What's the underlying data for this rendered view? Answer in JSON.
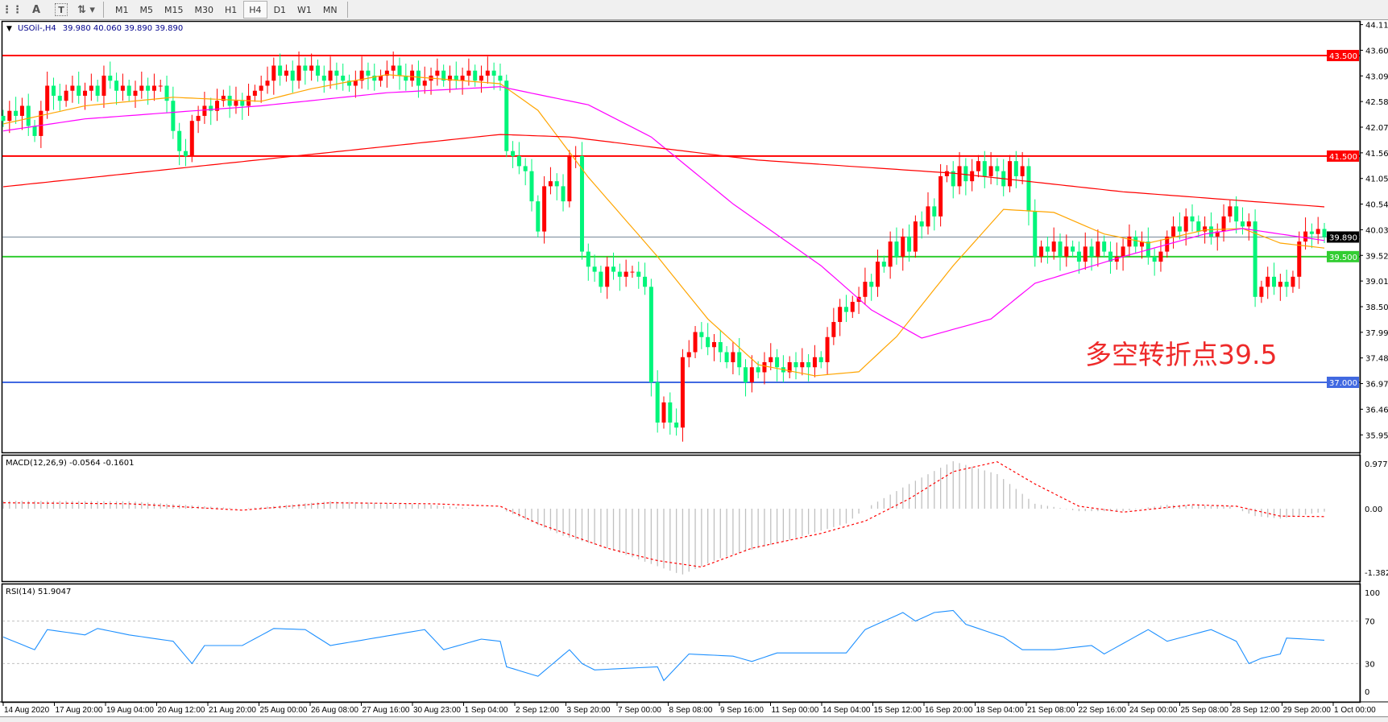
{
  "toolbar": {
    "icons": [
      "grid-icon",
      "text-a-icon",
      "text-label-icon",
      "arrows-icon"
    ],
    "timeframes": [
      "M1",
      "M5",
      "M15",
      "M30",
      "H1",
      "H4",
      "D1",
      "W1",
      "MN"
    ],
    "selected_timeframe": "H4"
  },
  "chart_header": {
    "symbol": "USOil-,H4",
    "ohlc": "39.980 40.060 39.890 39.890"
  },
  "annotation": "多空转折点39.5",
  "chart_data": [
    {
      "type": "candlestick",
      "title": "USOil-,H4",
      "ylim": [
        35.955,
        44.115
      ],
      "price_ticks": [
        "44.115",
        "43.605",
        "43.095",
        "42.585",
        "42.075",
        "41.565",
        "41.055",
        "40.545",
        "40.035",
        "39.525",
        "39.015",
        "38.505",
        "37.995",
        "37.485",
        "36.975",
        "36.465",
        "35.955"
      ],
      "time_labels": [
        "14 Aug 2020",
        "17 Aug 20:00",
        "19 Aug 04:00",
        "20 Aug 12:00",
        "21 Aug 20:00",
        "25 Aug 00:00",
        "26 Aug 08:00",
        "27 Aug 16:00",
        "30 Aug 23:00",
        "1 Sep 04:00",
        "2 Sep 12:00",
        "3 Sep 20:00",
        "7 Sep 00:00",
        "8 Sep 08:00",
        "9 Sep 16:00",
        "11 Sep 00:00",
        "14 Sep 04:00",
        "15 Sep 12:00",
        "16 Sep 20:00",
        "18 Sep 04:00",
        "21 Sep 08:00",
        "22 Sep 16:00",
        "24 Sep 00:00",
        "25 Sep 08:00",
        "28 Sep 12:00",
        "29 Sep 20:00",
        "1 Oct 00:00"
      ],
      "closes": [
        42.2,
        42.4,
        42.3,
        42.5,
        42.1,
        41.9,
        42.4,
        42.9,
        42.7,
        42.6,
        42.8,
        42.9,
        42.7,
        42.8,
        42.9,
        42.7,
        43.1,
        43.0,
        42.8,
        42.9,
        42.7,
        42.8,
        42.9,
        42.8,
        42.9,
        42.9,
        42.6,
        42.0,
        41.6,
        41.5,
        42.2,
        42.3,
        42.5,
        42.4,
        42.6,
        42.7,
        42.5,
        42.6,
        42.5,
        42.7,
        42.8,
        42.9,
        43.0,
        43.3,
        43.1,
        43.2,
        43.0,
        43.3,
        43.2,
        43.3,
        43.1,
        43.0,
        43.2,
        43.1,
        43.0,
        42.9,
        43.0,
        43.2,
        43.1,
        43.0,
        43.1,
        43.2,
        43.3,
        43.1,
        43.0,
        43.2,
        42.9,
        43.0,
        43.1,
        43.2,
        43.0,
        43.1,
        43.0,
        43.1,
        43.2,
        43.0,
        43.1,
        43.2,
        43.1,
        43.0,
        41.6,
        41.5,
        41.3,
        41.2,
        40.6,
        40.0,
        40.9,
        41.0,
        40.9,
        40.6,
        41.5,
        41.5,
        39.6,
        39.3,
        39.2,
        38.9,
        39.3,
        39.2,
        39.1,
        39.2,
        39.2,
        39.1,
        38.9,
        37.0,
        36.2,
        36.6,
        36.2,
        36.1,
        37.5,
        37.6,
        38.0,
        37.9,
        37.7,
        37.8,
        37.6,
        37.4,
        37.6,
        37.3,
        37.0,
        37.3,
        37.2,
        37.4,
        37.5,
        37.3,
        37.2,
        37.4,
        37.3,
        37.4,
        37.3,
        37.5,
        37.4,
        37.9,
        38.2,
        38.5,
        38.4,
        38.6,
        38.7,
        39.0,
        38.9,
        39.4,
        39.3,
        39.8,
        39.5,
        39.9,
        39.6,
        40.2,
        40.1,
        40.5,
        40.3,
        41.1,
        41.2,
        40.9,
        41.3,
        41.0,
        41.2,
        41.4,
        41.1,
        41.3,
        41.2,
        40.9,
        41.4,
        41.1,
        41.3,
        40.4,
        39.5,
        39.7,
        39.6,
        39.8,
        39.5,
        39.7,
        39.6,
        39.4,
        39.7,
        39.5,
        39.8,
        39.6,
        39.4,
        39.5,
        39.7,
        39.9,
        39.7,
        39.8,
        39.5,
        39.4,
        39.6,
        39.9,
        40.1,
        40.0,
        40.3,
        40.2,
        40.0,
        40.1,
        39.9,
        40.0,
        40.3,
        40.5,
        40.2,
        40.1,
        40.2,
        38.7,
        38.9,
        39.1,
        38.9,
        39.0,
        38.9,
        39.1,
        39.8,
        40.0,
        39.95,
        40.05,
        39.89
      ],
      "bull_color": "#ff0000",
      "bear_color": "#00f57a",
      "moving_averages": [
        {
          "color": "#ffa500",
          "points": [
            [
              0,
              42.14
            ],
            [
              13,
              42.5
            ],
            [
              27,
              42.67
            ],
            [
              41,
              42.59
            ],
            [
              49,
              42.84
            ],
            [
              61,
              43.12
            ],
            [
              79,
              42.94
            ],
            [
              85,
              42.41
            ],
            [
              93,
              41.08
            ],
            [
              104,
              39.5
            ],
            [
              112,
              38.26
            ],
            [
              120,
              37.35
            ],
            [
              129,
              37.13
            ],
            [
              136,
              37.21
            ],
            [
              142,
              37.91
            ],
            [
              151,
              39.32
            ],
            [
              159,
              40.44
            ],
            [
              167,
              40.38
            ],
            [
              175,
              39.95
            ],
            [
              182,
              39.77
            ],
            [
              191,
              40.03
            ],
            [
              197,
              40.06
            ],
            [
              203,
              39.77
            ],
            [
              210,
              39.67
            ]
          ]
        },
        {
          "color": "#ff00ff",
          "points": [
            [
              0,
              42.0
            ],
            [
              13,
              42.24
            ],
            [
              41,
              42.5
            ],
            [
              61,
              42.76
            ],
            [
              79,
              42.88
            ],
            [
              93,
              42.52
            ],
            [
              103,
              41.88
            ],
            [
              116,
              40.55
            ],
            [
              130,
              39.32
            ],
            [
              138,
              38.44
            ],
            [
              146,
              37.88
            ],
            [
              157,
              38.26
            ],
            [
              164,
              38.97
            ],
            [
              178,
              39.5
            ],
            [
              191,
              39.95
            ],
            [
              197,
              40.06
            ],
            [
              210,
              39.82
            ]
          ]
        },
        {
          "color": "#ff0000",
          "points": [
            [
              0,
              40.89
            ],
            [
              41,
              41.43
            ],
            [
              79,
              41.93
            ],
            [
              90,
              41.88
            ],
            [
              120,
              41.42
            ],
            [
              151,
              41.16
            ],
            [
              178,
              40.79
            ],
            [
              210,
              40.49
            ]
          ]
        }
      ],
      "horizontal_lines": [
        {
          "value": 43.5,
          "label": "43.500",
          "color": "#ff0000"
        },
        {
          "value": 41.5,
          "label": "41.500",
          "color": "#ff0000"
        },
        {
          "value": 39.5,
          "label": "39.500",
          "color": "#32cd32"
        },
        {
          "value": 37.0,
          "label": "37.000",
          "color": "#4169e1"
        },
        {
          "value": 39.89,
          "label": "39.890",
          "color": "#000000",
          "line_color": "#778899"
        }
      ]
    },
    {
      "type": "bar",
      "title": "MACD(12,26,9) -0.0564 -0.1601",
      "ylim": [
        -1.382,
        0.9779
      ],
      "ticks": [
        "0.9779",
        "0.00",
        "-1.382"
      ],
      "macd_points": [
        [
          0,
          0.16
        ],
        [
          20,
          0.15
        ],
        [
          38,
          0.0
        ],
        [
          52,
          0.15
        ],
        [
          68,
          0.08
        ],
        [
          75,
          0.0
        ],
        [
          79,
          0.0
        ],
        [
          89,
          -0.55
        ],
        [
          96,
          -0.8
        ],
        [
          107,
          -1.3
        ],
        [
          108,
          -1.33
        ],
        [
          114,
          -1.0
        ],
        [
          123,
          -0.7
        ],
        [
          134,
          -0.3
        ],
        [
          137,
          0.0
        ],
        [
          144,
          0.5
        ],
        [
          151,
          0.96
        ],
        [
          158,
          0.7
        ],
        [
          164,
          0.1
        ],
        [
          171,
          -0.05
        ],
        [
          178,
          -0.05
        ],
        [
          185,
          0.08
        ],
        [
          195,
          0.05
        ],
        [
          199,
          -0.15
        ],
        [
          203,
          -0.2
        ],
        [
          210,
          -0.06
        ]
      ],
      "signal_points": [
        [
          0,
          0.12
        ],
        [
          20,
          0.1
        ],
        [
          38,
          -0.03
        ],
        [
          52,
          0.12
        ],
        [
          68,
          0.1
        ],
        [
          79,
          0.05
        ],
        [
          85,
          -0.3
        ],
        [
          96,
          -0.8
        ],
        [
          104,
          -1.05
        ],
        [
          111,
          -1.18
        ],
        [
          119,
          -0.8
        ],
        [
          130,
          -0.5
        ],
        [
          137,
          -0.25
        ],
        [
          144,
          0.2
        ],
        [
          151,
          0.75
        ],
        [
          158,
          0.95
        ],
        [
          164,
          0.5
        ],
        [
          171,
          0.05
        ],
        [
          178,
          -0.07
        ],
        [
          189,
          0.08
        ],
        [
          196,
          0.05
        ],
        [
          203,
          -0.15
        ],
        [
          210,
          -0.16
        ]
      ],
      "histogram_color": "#c0c0c0",
      "signal_color": "#ff0000"
    },
    {
      "type": "line",
      "title": "RSI(14) 51.9047",
      "ylim": [
        0,
        100
      ],
      "ticks": [
        "100",
        "70",
        "30",
        "0"
      ],
      "levels": [
        70,
        30
      ],
      "color": "#1e90ff",
      "points": [
        [
          0,
          55
        ],
        [
          5,
          43
        ],
        [
          7,
          62
        ],
        [
          13,
          57
        ],
        [
          15,
          63
        ],
        [
          20,
          57
        ],
        [
          27,
          51
        ],
        [
          30,
          30
        ],
        [
          32,
          47
        ],
        [
          38,
          47
        ],
        [
          43,
          63
        ],
        [
          48,
          62
        ],
        [
          52,
          47
        ],
        [
          60,
          55
        ],
        [
          67,
          62
        ],
        [
          70,
          43
        ],
        [
          76,
          53
        ],
        [
          79,
          51
        ],
        [
          80,
          27
        ],
        [
          85,
          18
        ],
        [
          90,
          43
        ],
        [
          92,
          30
        ],
        [
          94,
          24
        ],
        [
          104,
          27
        ],
        [
          105,
          14
        ],
        [
          109,
          39
        ],
        [
          116,
          37
        ],
        [
          119,
          32
        ],
        [
          123,
          40
        ],
        [
          130,
          40
        ],
        [
          134,
          40
        ],
        [
          137,
          62
        ],
        [
          140,
          70
        ],
        [
          143,
          78
        ],
        [
          145,
          70
        ],
        [
          148,
          78
        ],
        [
          151,
          80
        ],
        [
          153,
          67
        ],
        [
          159,
          55
        ],
        [
          162,
          43
        ],
        [
          167,
          43
        ],
        [
          173,
          47
        ],
        [
          175,
          39
        ],
        [
          182,
          62
        ],
        [
          185,
          51
        ],
        [
          192,
          62
        ],
        [
          196,
          51
        ],
        [
          198,
          30
        ],
        [
          200,
          35
        ],
        [
          203,
          39
        ],
        [
          204,
          54
        ],
        [
          210,
          52
        ]
      ]
    }
  ]
}
